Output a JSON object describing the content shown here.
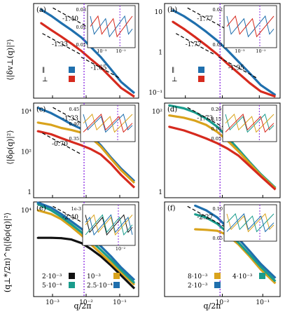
{
  "figure": {
    "xlabel": "q/2π",
    "ylabels": [
      "⟨|δv⊥(q)|²⟩",
      "⟨|δρ(q)|²⟩",
      "(q⊥*/2π)^η⟨|δρ(q)|²⟩"
    ]
  },
  "colors": {
    "blue": "#1f6fad",
    "red": "#d62a1e",
    "teal": "#1a9c8c",
    "gold": "#d9a31c",
    "black": "#111111",
    "vline": "#8a2be2",
    "fit": "#000000"
  },
  "chart_data": [
    {
      "type": "line",
      "panel": "a",
      "label": "(a)",
      "xlog": true,
      "ylog": true,
      "xlim": [
        0.0003,
        0.4
      ],
      "ylim": [
        0.05,
        30
      ],
      "vline": 0.0095,
      "xticks": [
        "10⁻³",
        "10⁻²",
        "10⁻¹"
      ],
      "yticks": [],
      "series": [
        {
          "name": "∥",
          "color": "blue",
          "x": [
            0.0005,
            0.001,
            0.002,
            0.004,
            0.008,
            0.015,
            0.03,
            0.06,
            0.12,
            0.3
          ],
          "y": [
            20,
            13,
            8,
            5,
            3,
            1.6,
            0.8,
            0.35,
            0.15,
            0.07
          ]
        },
        {
          "name": "⊥",
          "color": "red",
          "x": [
            0.0005,
            0.001,
            0.002,
            0.004,
            0.008,
            0.015,
            0.03,
            0.06,
            0.12,
            0.3
          ],
          "y": [
            8,
            5,
            3.2,
            2,
            1.2,
            0.7,
            0.4,
            0.2,
            0.1,
            0.055
          ]
        }
      ],
      "annotations": [
        "-1.40",
        "-1.33",
        "-1.65"
      ],
      "inset": {
        "xticks": [
          "10⁻³",
          "10⁻²"
        ],
        "yticks": [
          "0.03",
          "0.02",
          "0.01"
        ],
        "vline": 0.0095
      }
    },
    {
      "type": "line",
      "panel": "b",
      "label": "(b)",
      "xlog": true,
      "ylog": true,
      "xlim": [
        0.0003,
        0.4
      ],
      "ylim": [
        0.1,
        30
      ],
      "xticks": [
        "10⁻³",
        "10⁻²",
        "10⁻¹"
      ],
      "yticks": [
        "10",
        "1",
        "10⁻¹"
      ],
      "series": [
        {
          "name": "∥",
          "color": "blue",
          "x": [
            0.0005,
            0.001,
            0.002,
            0.004,
            0.008,
            0.015,
            0.03,
            0.06,
            0.12,
            0.3
          ],
          "y": [
            20,
            14,
            9,
            5.5,
            3.2,
            1.8,
            0.9,
            0.45,
            0.22,
            0.12
          ]
        },
        {
          "name": "⊥",
          "color": "red",
          "x": [
            0.0005,
            0.001,
            0.002,
            0.004,
            0.008,
            0.015,
            0.03,
            0.06,
            0.12,
            0.3
          ],
          "y": [
            10,
            6.5,
            4,
            2.4,
            1.4,
            0.8,
            0.45,
            0.25,
            0.15,
            0.11
          ]
        }
      ],
      "annotations": [
        "-1.77",
        "-1.77",
        "-1.95"
      ],
      "inset": {
        "xticks": [
          "10⁻³",
          "10⁻²"
        ],
        "yticks": [
          "0.02",
          "0.01"
        ],
        "vline": 0.0095
      }
    },
    {
      "type": "line",
      "panel": "c",
      "label": "(c)",
      "xlog": true,
      "ylog": true,
      "xlim": [
        0.0003,
        0.4
      ],
      "ylim": [
        0.5,
        15000
      ],
      "xticks": [
        "10⁻³",
        "10⁻²",
        "10⁻¹"
      ],
      "yticks": [
        "10⁴",
        "10²",
        "1"
      ],
      "series": [
        {
          "name": "blue",
          "color": "blue",
          "x": [
            0.0004,
            0.001,
            0.002,
            0.004,
            0.008,
            0.015,
            0.03,
            0.06,
            0.12,
            0.3
          ],
          "y": [
            9000,
            5000,
            2800,
            1500,
            900,
            450,
            150,
            40,
            12,
            3
          ]
        },
        {
          "name": "gold",
          "color": "gold",
          "x": [
            0.0004,
            0.001,
            0.002,
            0.004,
            0.008,
            0.015,
            0.03,
            0.06,
            0.12,
            0.3
          ],
          "y": [
            1800,
            1400,
            1000,
            800,
            600,
            350,
            130,
            35,
            10,
            2.5
          ]
        },
        {
          "name": "red",
          "color": "red",
          "x": [
            0.0004,
            0.001,
            0.002,
            0.004,
            0.008,
            0.015,
            0.03,
            0.06,
            0.12,
            0.3
          ],
          "y": [
            700,
            500,
            330,
            220,
            150,
            100,
            55,
            20,
            6,
            1.5
          ]
        }
      ],
      "annotations": [
        "-1.33",
        "-0.70"
      ],
      "inset": {
        "yticks": [
          "0.45",
          "0.40",
          "0.35"
        ],
        "vline": 0.0095
      }
    },
    {
      "type": "line",
      "panel": "d",
      "label": "(d)",
      "xlog": true,
      "ylog": true,
      "xlim": [
        0.0003,
        0.4
      ],
      "ylim": [
        0.5,
        5000
      ],
      "xticks": [
        "10⁻²",
        "10⁻¹"
      ],
      "yticks": [
        "10²",
        "1"
      ],
      "series": [
        {
          "name": "teal",
          "color": "teal",
          "x": [
            0.0004,
            0.001,
            0.002,
            0.004,
            0.008,
            0.015,
            0.03,
            0.06,
            0.12,
            0.3
          ],
          "y": [
            4000,
            3000,
            2000,
            1100,
            500,
            180,
            55,
            16,
            5,
            1.3
          ]
        },
        {
          "name": "gold",
          "color": "gold",
          "x": [
            0.0004,
            0.001,
            0.002,
            0.004,
            0.008,
            0.015,
            0.03,
            0.06,
            0.12,
            0.3
          ],
          "y": [
            1500,
            1200,
            900,
            600,
            300,
            130,
            45,
            14,
            4.5,
            1.2
          ]
        },
        {
          "name": "red",
          "color": "red",
          "x": [
            0.0004,
            0.001,
            0.002,
            0.004,
            0.008,
            0.015,
            0.03,
            0.06,
            0.12,
            0.3
          ],
          "y": [
            500,
            350,
            240,
            160,
            100,
            60,
            30,
            11,
            4,
            1.1
          ]
        }
      ],
      "annotations": [
        "-1.73"
      ],
      "inset": {
        "yticks": [
          "0.20",
          "0.15",
          "0.10",
          "0.05"
        ],
        "vline": 0.0095
      }
    },
    {
      "type": "line",
      "panel": "e",
      "label": "(e)",
      "xlog": true,
      "ylog": true,
      "xlim": [
        0.0003,
        0.4
      ],
      "ylim": [
        0.5,
        15000
      ],
      "xticks": [
        "10⁻³",
        "10⁻²",
        "10⁻¹"
      ],
      "yticks": [
        "10⁴"
      ],
      "series": [
        {
          "name": "2·10⁻³",
          "color": "black",
          "x": [
            0.0004,
            0.001,
            0.002,
            0.004,
            0.008,
            0.015,
            0.03,
            0.06,
            0.12,
            0.3
          ],
          "y": [
            300,
            300,
            290,
            250,
            170,
            90,
            40,
            15,
            5,
            1.2
          ]
        },
        {
          "name": "10⁻³",
          "color": "gold",
          "x": [
            0.0004,
            0.001,
            0.002,
            0.004,
            0.008,
            0.015,
            0.03,
            0.06,
            0.12,
            0.3
          ],
          "y": [
            6000,
            4000,
            2300,
            1000,
            400,
            150,
            55,
            20,
            7,
            1.8
          ]
        },
        {
          "name": "5·10⁻⁴",
          "color": "teal",
          "x": [
            0.0004,
            0.001,
            0.002,
            0.004,
            0.008,
            0.015,
            0.03,
            0.06,
            0.12,
            0.3
          ],
          "y": [
            12000,
            6000,
            3000,
            1300,
            550,
            220,
            80,
            28,
            9,
            2.2
          ]
        },
        {
          "name": "2.5·10⁻⁴",
          "color": "blue",
          "x": [
            0.0004,
            0.001,
            0.002,
            0.004,
            0.008,
            0.015,
            0.03,
            0.06,
            0.12,
            0.3
          ],
          "y": [
            14000,
            8000,
            4000,
            1800,
            800,
            330,
            120,
            40,
            12,
            3
          ]
        }
      ],
      "annotations": [
        "-2.40"
      ],
      "inset": {
        "xticks": [
          "10⁻²"
        ],
        "yticks": [
          "1e-3"
        ],
        "vline": 0.0095
      }
    },
    {
      "type": "line",
      "panel": "f",
      "label": "(f)",
      "xlog": true,
      "ylog": true,
      "xlim": [
        0.0003,
        0.4
      ],
      "ylim": [
        0.5,
        5000
      ],
      "xticks": [
        "10⁻²",
        "10⁻¹"
      ],
      "yticks": [],
      "series": [
        {
          "name": "8·10⁻³",
          "color": "gold",
          "x": [
            0.002,
            0.004,
            0.008,
            0.015,
            0.03,
            0.06,
            0.12,
            0.3
          ],
          "y": [
            350,
            330,
            300,
            200,
            80,
            25,
            7,
            1.8
          ]
        },
        {
          "name": "4·10⁻³",
          "color": "teal",
          "x": [
            0.002,
            0.004,
            0.008,
            0.015,
            0.03,
            0.06,
            0.12,
            0.3
          ],
          "y": [
            1500,
            1100,
            600,
            260,
            95,
            30,
            9,
            2.2
          ]
        },
        {
          "name": "2·10⁻³",
          "color": "blue",
          "x": [
            0.002,
            0.004,
            0.008,
            0.015,
            0.03,
            0.06,
            0.12,
            0.3
          ],
          "y": [
            3500,
            2200,
            1100,
            420,
            140,
            42,
            12,
            3
          ]
        }
      ],
      "annotations": [
        "-2.27"
      ],
      "inset": {
        "yticks": [
          "0.10",
          "0.05"
        ],
        "vline": 0.0095
      }
    }
  ],
  "legends": {
    "ab": [
      {
        "label": "∥",
        "color": "blue"
      },
      {
        "label": "⊥",
        "color": "red"
      }
    ],
    "e": [
      {
        "label": "2·10⁻³",
        "color": "black"
      },
      {
        "label": "10⁻³",
        "color": "gold"
      },
      {
        "label": "5·10⁻⁴",
        "color": "teal"
      },
      {
        "label": "2.5·10⁻⁴",
        "color": "blue"
      }
    ],
    "f": [
      {
        "label": "8·10⁻³",
        "color": "gold"
      },
      {
        "label": "4·10⁻³",
        "color": "teal"
      },
      {
        "label": "2·10⁻³",
        "color": "blue"
      }
    ]
  }
}
